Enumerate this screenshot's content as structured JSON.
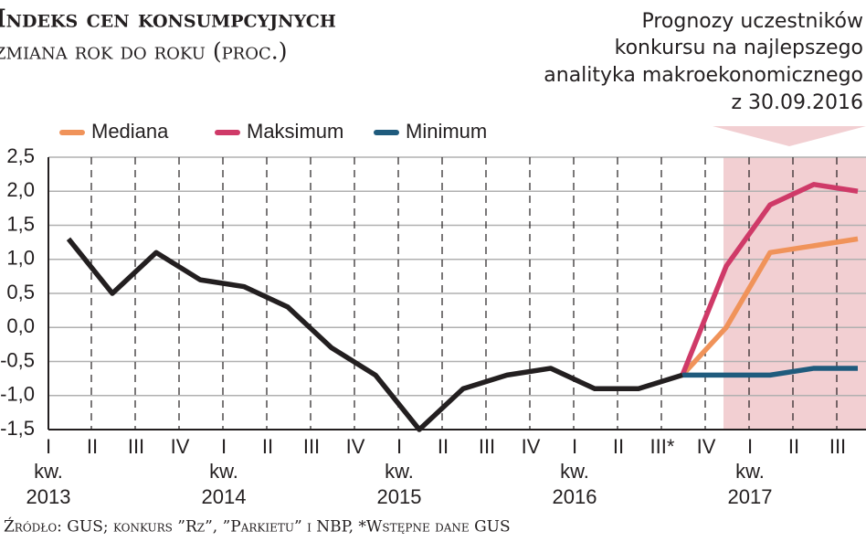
{
  "chart_data": {
    "type": "line",
    "title": "Indeks cen konsumpcyjnych",
    "subtitle": "zmiana rok do roku (proc.)",
    "annotation": [
      "Prognozy uczestników",
      "konkursu na najlepszego",
      "analityka makroekonomicznego",
      "z 30.09.2016"
    ],
    "source": "Źródło: GUS; konkurs ”Rz”, ”Parkietu” i NBP, *Wstępne dane GUS",
    "categories": [
      "I",
      "II",
      "III",
      "IV",
      "I",
      "II",
      "III",
      "IV",
      "I",
      "II",
      "III",
      "IV",
      "I",
      "II",
      "III*",
      "IV",
      "I",
      "II",
      "III"
    ],
    "years": [
      {
        "prefix": "kw.",
        "year": "2013"
      },
      {
        "prefix": "kw.",
        "year": "2014"
      },
      {
        "prefix": "kw.",
        "year": "2015"
      },
      {
        "prefix": "kw.",
        "year": "2016"
      },
      {
        "prefix": "kw.",
        "year": "2017"
      }
    ],
    "values": [
      1.3,
      0.5,
      1.1,
      0.7,
      0.6,
      0.3,
      -0.3,
      -0.7,
      -1.5,
      -0.9,
      -0.7,
      -0.6,
      -0.9,
      -0.9,
      -0.7,
      null,
      null,
      null,
      null
    ],
    "color": "#231f20",
    "series": [
      {
        "name": "Mediana",
        "color": "#f0935a",
        "values": [
          null,
          null,
          null,
          null,
          null,
          null,
          null,
          null,
          null,
          null,
          null,
          null,
          null,
          null,
          -0.7,
          0.0,
          1.1,
          1.2,
          1.3
        ]
      },
      {
        "name": "Maksimum",
        "color": "#cf3a68",
        "values": [
          null,
          null,
          null,
          null,
          null,
          null,
          null,
          null,
          null,
          null,
          null,
          null,
          null,
          null,
          -0.7,
          0.9,
          1.8,
          2.1,
          2.0
        ]
      },
      {
        "name": "Minimum",
        "color": "#1f5b7d",
        "values": [
          null,
          null,
          null,
          null,
          null,
          null,
          null,
          null,
          null,
          null,
          null,
          null,
          null,
          null,
          -0.7,
          -0.7,
          -0.7,
          -0.6,
          -0.6
        ]
      }
    ],
    "ylim": [
      -1.5,
      2.5
    ],
    "yticks": [
      {
        "value": -1.5,
        "label": "-1,5"
      },
      {
        "value": -1,
        "label": "-1,0"
      },
      {
        "value": -0.5,
        "label": "-0,5"
      },
      {
        "value": 0,
        "label": "0,0"
      },
      {
        "value": 0.5,
        "label": "0,5"
      },
      {
        "value": 1,
        "label": "1,0"
      },
      {
        "value": 1.5,
        "label": "1,5"
      },
      {
        "value": 2,
        "label": "2,0"
      },
      {
        "value": 2.5,
        "label": "2,5"
      }
    ],
    "grid": true
  }
}
